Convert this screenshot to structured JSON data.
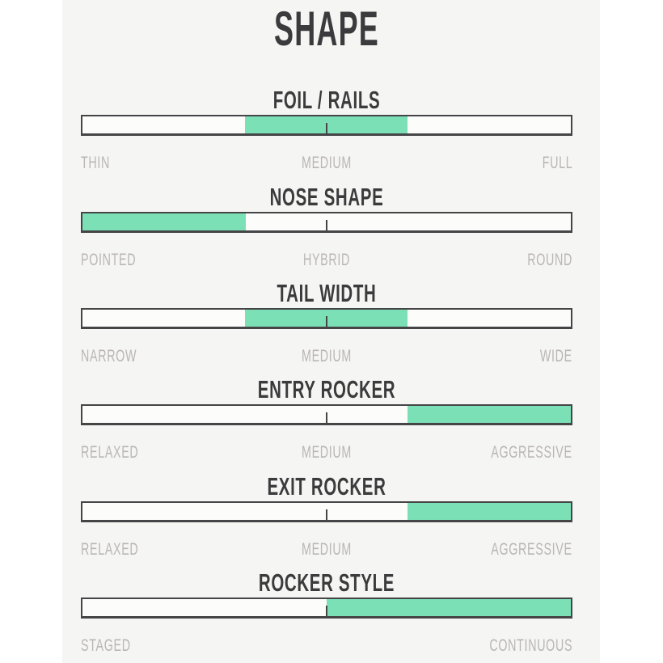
{
  "page": {
    "title": "SHAPE"
  },
  "colors": {
    "accent": "#7ce0b6",
    "track_border": "#454547",
    "heading": "#3b3b3d",
    "label": "#b9b6b3",
    "panel_bg": "#f5f5f3",
    "page_bg": "#ffffff",
    "track_bg": "#fcfcfb"
  },
  "chart_data": {
    "type": "bar",
    "subtype": "range-slider",
    "title": "SHAPE",
    "axis_range_pct": [
      0,
      100
    ],
    "tick_positions_pct": [
      0,
      50,
      100
    ],
    "legend": "none",
    "sliders": [
      {
        "title": "FOIL / RAILS",
        "labels": {
          "left": "THIN",
          "center": "MEDIUM",
          "right": "FULL"
        },
        "range": {
          "start_pct": 33.3,
          "end_pct": 66.6
        },
        "value": "MEDIUM"
      },
      {
        "title": "NOSE SHAPE",
        "labels": {
          "left": "POINTED",
          "center": "HYBRID",
          "right": "ROUND"
        },
        "range": {
          "start_pct": 0,
          "end_pct": 33.4
        },
        "value": "POINTED"
      },
      {
        "title": "TAIL WIDTH",
        "labels": {
          "left": "NARROW",
          "center": "MEDIUM",
          "right": "WIDE"
        },
        "range": {
          "start_pct": 33.3,
          "end_pct": 66.6
        },
        "value": "MEDIUM"
      },
      {
        "title": "ENTRY ROCKER",
        "labels": {
          "left": "RELAXED",
          "center": "MEDIUM",
          "right": "AGGRESSIVE"
        },
        "range": {
          "start_pct": 66.6,
          "end_pct": 100
        },
        "value": "AGGRESSIVE"
      },
      {
        "title": "EXIT ROCKER",
        "labels": {
          "left": "RELAXED",
          "center": "MEDIUM",
          "right": "AGGRESSIVE"
        },
        "range": {
          "start_pct": 66.6,
          "end_pct": 100
        },
        "value": "AGGRESSIVE"
      },
      {
        "title": "ROCKER STYLE",
        "labels": {
          "left": "STAGED",
          "right": "CONTINUOUS"
        },
        "range": {
          "start_pct": 50,
          "end_pct": 100
        },
        "value": "CONTINUOUS"
      }
    ]
  }
}
